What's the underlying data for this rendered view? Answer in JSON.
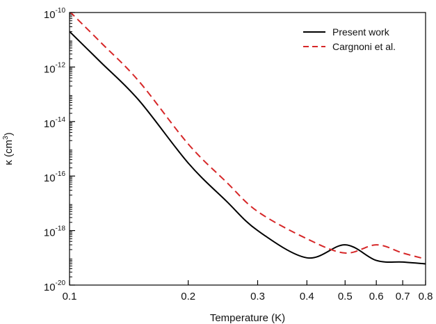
{
  "chart_data": {
    "type": "line",
    "xlabel": "Temperature (K)",
    "ylabel": {
      "base": "κ (cm",
      "exp": "3",
      "close": ")"
    },
    "x_scale": "log",
    "y_scale": "log",
    "xlim": [
      0.1,
      0.8
    ],
    "ylim": [
      1e-20,
      1e-10
    ],
    "x_ticks": [
      0.1,
      0.2,
      0.3,
      0.4,
      0.5,
      0.6,
      0.7,
      0.8
    ],
    "x_tick_labels": [
      "0.1",
      "0.2",
      "0.3",
      "0.4",
      "0.5",
      "0.6",
      "0.7",
      "0.8"
    ],
    "y_ticks": [
      {
        "value": 1e-20,
        "base": "10",
        "exp": "-20"
      },
      {
        "value": 1e-18,
        "base": "10",
        "exp": "-18"
      },
      {
        "value": 1e-16,
        "base": "10",
        "exp": "-16"
      },
      {
        "value": 1e-14,
        "base": "10",
        "exp": "-14"
      },
      {
        "value": 1e-12,
        "base": "10",
        "exp": "-12"
      },
      {
        "value": 1e-10,
        "base": "10",
        "exp": "-10"
      }
    ],
    "legend_position": "top-right",
    "series": [
      {
        "name": "Present work",
        "color": "#000000",
        "dash": "solid",
        "x": [
          0.1,
          0.12,
          0.15,
          0.2,
          0.25,
          0.3,
          0.4,
          0.5,
          0.6,
          0.7,
          0.8
        ],
        "y": [
          2e-11,
          1.5e-12,
          6e-14,
          3e-16,
          1.2e-17,
          1e-18,
          1e-19,
          3e-19,
          8e-20,
          7e-20,
          6e-20
        ]
      },
      {
        "name": "Cargnoni et al.",
        "color": "#d62728",
        "dash": "dashed",
        "x": [
          0.1,
          0.12,
          0.15,
          0.2,
          0.25,
          0.3,
          0.4,
          0.5,
          0.6,
          0.7,
          0.8
        ],
        "y": [
          1.1e-10,
          8e-12,
          3e-13,
          1.5e-15,
          6e-17,
          5e-18,
          5e-19,
          1.5e-19,
          3e-19,
          1.5e-19,
          9e-20
        ]
      }
    ]
  }
}
